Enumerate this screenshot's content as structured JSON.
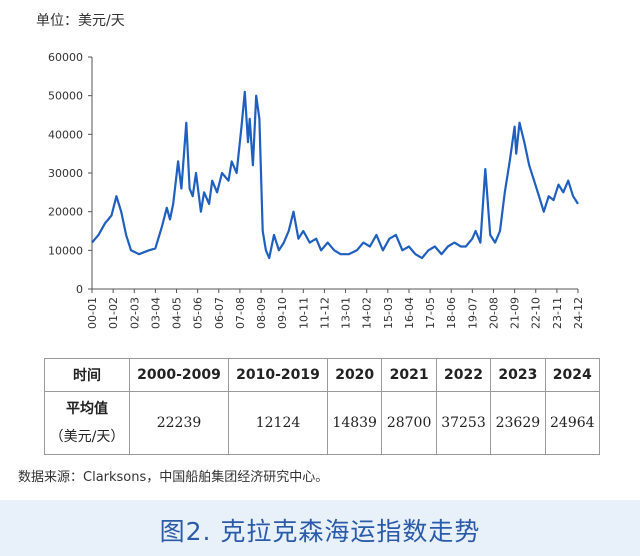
{
  "unit_label": "单位：美元/天",
  "source_note": "数据来源：Clarksons，中国船舶集团经济研究中心。",
  "caption": "图2. 克拉克森海运指数走势",
  "colors": {
    "line": "#1f5fbf",
    "caption": "#2a5aa8",
    "caption_bg": "#e8f0fa"
  },
  "chart_data": {
    "type": "line",
    "x_ticks": [
      "00-01",
      "01-02",
      "02-03",
      "03-04",
      "04-05",
      "05-06",
      "06-07",
      "07-08",
      "08-09",
      "09-10",
      "10-11",
      "11-12",
      "13-01",
      "14-02",
      "15-03",
      "16-04",
      "17-05",
      "18-06",
      "19-07",
      "20-08",
      "21-09",
      "22-10",
      "23-11",
      "24-12"
    ],
    "ylim": [
      0,
      60000
    ],
    "y_ticks": [
      0,
      10000,
      20000,
      30000,
      40000,
      50000,
      60000
    ],
    "grid": false,
    "series": [
      {
        "x": [
          "2000-01",
          "2000-05",
          "2000-09",
          "2001-01",
          "2001-04",
          "2001-07",
          "2001-10",
          "2002-01",
          "2002-06",
          "2002-12",
          "2003-04",
          "2003-08",
          "2003-11",
          "2004-01",
          "2004-03",
          "2004-06",
          "2004-08",
          "2004-11",
          "2005-01",
          "2005-03",
          "2005-05",
          "2005-08",
          "2005-10",
          "2006-01",
          "2006-03",
          "2006-06",
          "2006-09",
          "2007-01",
          "2007-03",
          "2007-06",
          "2007-09",
          "2007-11",
          "2008-01",
          "2008-02",
          "2008-04",
          "2008-06",
          "2008-08",
          "2008-10",
          "2008-12",
          "2009-02",
          "2009-05",
          "2009-08",
          "2009-11",
          "2010-02",
          "2010-05",
          "2010-08",
          "2010-11",
          "2011-03",
          "2011-07",
          "2011-10",
          "2012-02",
          "2012-06",
          "2012-10",
          "2013-03",
          "2013-08",
          "2013-12",
          "2014-04",
          "2014-08",
          "2014-12",
          "2015-04",
          "2015-08",
          "2015-12",
          "2016-04",
          "2016-08",
          "2016-12",
          "2017-04",
          "2017-08",
          "2017-12",
          "2018-04",
          "2018-08",
          "2018-12",
          "2019-03",
          "2019-07",
          "2019-09",
          "2019-12",
          "2020-03",
          "2020-06",
          "2020-09",
          "2020-12",
          "2021-03",
          "2021-06",
          "2021-09",
          "2021-10",
          "2021-12",
          "2022-03",
          "2022-06",
          "2022-09",
          "2022-12",
          "2023-03",
          "2023-06",
          "2023-09",
          "2023-12",
          "2024-03",
          "2024-06",
          "2024-09",
          "2024-12"
        ],
        "values": [
          12000,
          14000,
          17000,
          19000,
          24000,
          20000,
          14000,
          10000,
          9000,
          10000,
          10500,
          16000,
          21000,
          18000,
          22000,
          33000,
          26000,
          43000,
          26000,
          24000,
          30000,
          20000,
          25000,
          22000,
          28000,
          25000,
          30000,
          28000,
          33000,
          30000,
          42000,
          51000,
          38000,
          44000,
          32000,
          50000,
          44000,
          15000,
          10000,
          8000,
          14000,
          10000,
          12000,
          15000,
          20000,
          13000,
          15000,
          12000,
          13000,
          10000,
          12000,
          10000,
          9000,
          9000,
          10000,
          12000,
          11000,
          14000,
          10000,
          13000,
          14000,
          10000,
          11000,
          9000,
          8000,
          10000,
          11000,
          9000,
          11000,
          12000,
          11000,
          11000,
          13000,
          15000,
          12000,
          31000,
          14000,
          12000,
          15000,
          25000,
          33000,
          42000,
          35000,
          43000,
          38000,
          32000,
          28000,
          24000,
          20000,
          24000,
          23000,
          27000,
          25000,
          28000,
          24000,
          22000
        ]
      }
    ]
  },
  "table": {
    "header": [
      "时间",
      "2000-2009",
      "2010-2019",
      "2020",
      "2021",
      "2022",
      "2023",
      "2024"
    ],
    "row_label": "平均值",
    "row_unit": "（美元/天）",
    "values": [
      "22239",
      "12124",
      "14839",
      "28700",
      "37253",
      "23629",
      "24964"
    ]
  }
}
